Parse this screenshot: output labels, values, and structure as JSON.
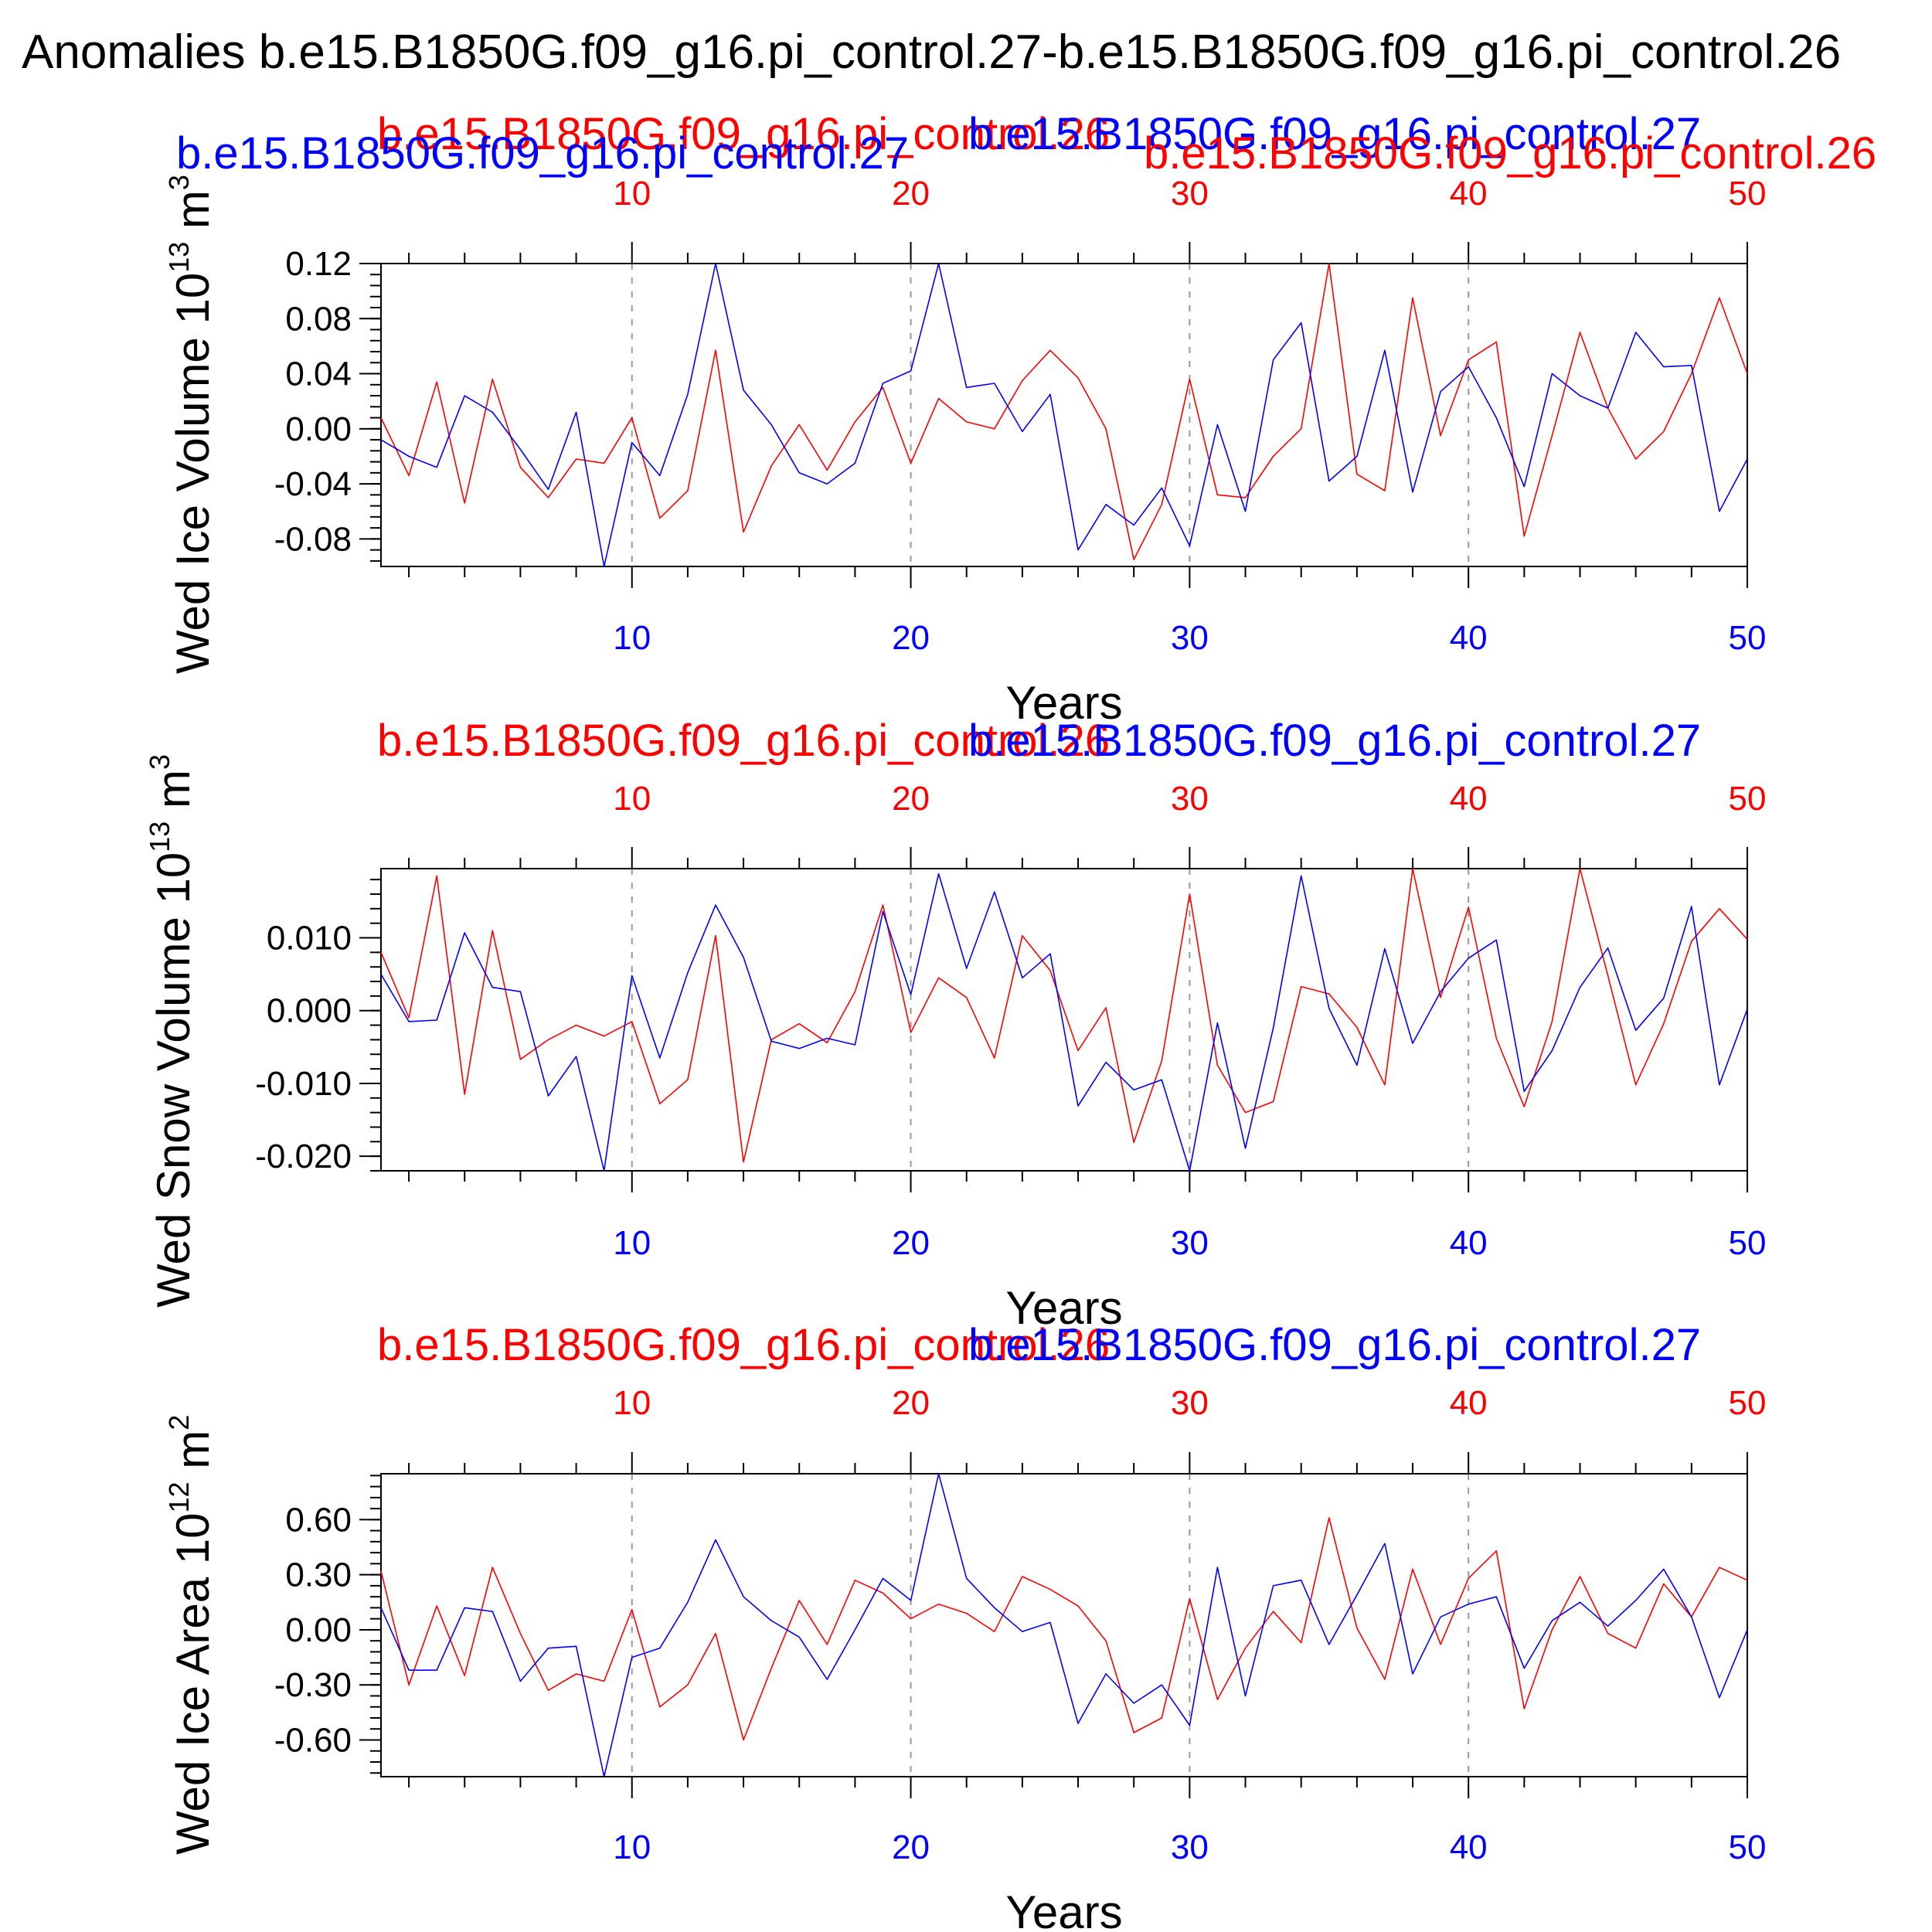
{
  "title": "Anomalies b.e15.B1850G.f09_g16.pi_control.27-b.e15.B1850G.f09_g16.pi_control.26",
  "colors": {
    "run26": "#ff0000",
    "run27": "#0000ff",
    "axis": "#000000",
    "grid": "#999999"
  },
  "panel1_extra_label": "b.e15.B1850G.f09_g16.pi_control.27",
  "panel1_extra_label_red": "b.e15.B1850G.f09_g16.pi_control.26",
  "chart_data": [
    {
      "type": "line",
      "ylabel": "Wed Ice Volume 10",
      "ylabel_exp": "13",
      "ylabel_unit": " m",
      "ylabel_unit_exp": "3",
      "xlabel": "Years",
      "top_ticks": [
        "10",
        "20",
        "30",
        "40",
        "50"
      ],
      "bottom_ticks": [
        "10",
        "20",
        "30",
        "40",
        "50"
      ],
      "xlim": [
        1,
        50
      ],
      "ylim": [
        -0.1,
        0.12
      ],
      "yticks": [
        0.12,
        0.08,
        0.04,
        0.0,
        -0.04,
        -0.08
      ],
      "ytick_labels": [
        "0.12",
        "0.08",
        "0.04",
        "0.00",
        "-0.04",
        "-0.08"
      ],
      "grid_x": [
        10,
        20,
        30,
        40
      ],
      "series": [
        {
          "name": "b.e15.B1850G.f09_g16.pi_control.26",
          "color": "red",
          "values": [
            0.008,
            -0.034,
            0.034,
            -0.054,
            0.036,
            -0.028,
            -0.05,
            -0.022,
            -0.025,
            0.008,
            -0.065,
            -0.045,
            0.057,
            -0.075,
            -0.027,
            0.003,
            -0.03,
            0.005,
            0.03,
            -0.025,
            0.022,
            0.005,
            0.0,
            0.035,
            0.057,
            0.037,
            0.0,
            -0.095,
            -0.055,
            0.036,
            -0.048,
            -0.05,
            -0.02,
            0.0,
            0.12,
            -0.033,
            -0.045,
            0.095,
            -0.005,
            0.05,
            0.063,
            -0.078,
            -0.005,
            0.07,
            0.015,
            -0.022,
            -0.002,
            0.04,
            0.095,
            0.04
          ]
        },
        {
          "name": "b.e15.B1850G.f09_g16.pi_control.27",
          "color": "blue",
          "values": [
            -0.008,
            -0.02,
            -0.028,
            0.024,
            0.012,
            -0.015,
            -0.044,
            0.012,
            -0.1,
            -0.01,
            -0.034,
            0.025,
            0.12,
            0.028,
            0.003,
            -0.032,
            -0.04,
            -0.025,
            0.033,
            0.042,
            0.12,
            0.03,
            0.033,
            -0.002,
            0.025,
            -0.088,
            -0.055,
            -0.07,
            -0.043,
            -0.085,
            0.003,
            -0.06,
            0.05,
            0.077,
            -0.038,
            -0.02,
            0.057,
            -0.046,
            0.027,
            0.045,
            0.008,
            -0.042,
            0.04,
            0.024,
            0.015,
            0.07,
            0.045,
            0.046,
            -0.06,
            -0.022
          ]
        }
      ]
    },
    {
      "type": "line",
      "ylabel": "Wed Snow Volume 10",
      "ylabel_exp": "13",
      "ylabel_unit": " m",
      "ylabel_unit_exp": "3",
      "xlabel": "Years",
      "top_ticks": [
        "10",
        "20",
        "30",
        "40",
        "50"
      ],
      "bottom_ticks": [
        "10",
        "20",
        "30",
        "40",
        "50"
      ],
      "xlim": [
        1,
        50
      ],
      "ylim": [
        -0.022,
        0.0195
      ],
      "yticks": [
        0.01,
        0.0,
        -0.01,
        -0.02
      ],
      "ytick_labels": [
        "0.010",
        "0.000",
        "-0.010",
        "-0.020"
      ],
      "grid_x": [
        10,
        20,
        30,
        40
      ],
      "series": [
        {
          "name": "b.e15.B1850G.f09_g16.pi_control.26",
          "color": "red",
          "values": [
            0.008,
            -0.001,
            0.0185,
            -0.0115,
            0.011,
            -0.0067,
            -0.004,
            -0.002,
            -0.0035,
            -0.0015,
            -0.0128,
            -0.0095,
            0.0103,
            -0.0208,
            -0.004,
            -0.0018,
            -0.0044,
            0.0026,
            0.0145,
            -0.003,
            0.0045,
            0.0018,
            -0.0065,
            0.0103,
            0.0055,
            -0.0055,
            0.0004,
            -0.0181,
            -0.0069,
            0.016,
            -0.0075,
            -0.014,
            -0.0125,
            0.0033,
            0.0023,
            -0.0023,
            -0.0102,
            0.0195,
            0.0018,
            0.0142,
            -0.0038,
            -0.0132,
            -0.0015,
            0.0195,
            0.0048,
            -0.0102,
            -0.0018,
            0.0095,
            0.014,
            0.0098
          ]
        },
        {
          "name": "b.e15.B1850G.f09_g16.pi_control.27",
          "color": "blue",
          "values": [
            0.005,
            -0.0015,
            -0.0013,
            0.0107,
            0.0032,
            0.0026,
            -0.0117,
            -0.0063,
            -0.022,
            0.0048,
            -0.0065,
            0.0052,
            0.0145,
            0.0073,
            -0.0042,
            -0.0052,
            -0.0038,
            -0.0047,
            0.0136,
            0.0022,
            0.0188,
            0.0058,
            0.0163,
            0.0045,
            0.0078,
            -0.0131,
            -0.0071,
            -0.0109,
            -0.0095,
            -0.022,
            -0.0017,
            -0.0189,
            -0.0024,
            0.0185,
            0.0003,
            -0.0075,
            0.0085,
            -0.0045,
            0.0026,
            0.0072,
            0.0097,
            -0.0111,
            -0.0055,
            0.0032,
            0.0086,
            -0.0027,
            0.0017,
            0.0143,
            -0.0102,
            0.0002
          ]
        }
      ]
    },
    {
      "type": "line",
      "ylabel": "Wed Ice Area 10",
      "ylabel_exp": "12",
      "ylabel_unit": " m",
      "ylabel_unit_exp": "2",
      "xlabel": "Years",
      "top_ticks": [
        "10",
        "20",
        "30",
        "40",
        "50"
      ],
      "bottom_ticks": [
        "10",
        "20",
        "30",
        "40",
        "50"
      ],
      "xlim": [
        1,
        50
      ],
      "ylim": [
        -0.8,
        0.85
      ],
      "yticks": [
        0.6,
        0.3,
        0.0,
        -0.3,
        -0.6
      ],
      "ytick_labels": [
        "0.60",
        "0.30",
        "0.00",
        "-0.30",
        "-0.60"
      ],
      "grid_x": [
        10,
        20,
        30,
        40
      ],
      "series": [
        {
          "name": "b.e15.B1850G.f09_g16.pi_control.26",
          "color": "red",
          "values": [
            0.32,
            -0.3,
            0.13,
            -0.25,
            0.34,
            -0.02,
            -0.33,
            -0.24,
            -0.28,
            0.11,
            -0.42,
            -0.3,
            -0.02,
            -0.6,
            -0.21,
            0.16,
            -0.08,
            0.27,
            0.2,
            0.06,
            0.14,
            0.09,
            -0.01,
            0.29,
            0.22,
            0.13,
            -0.06,
            -0.56,
            -0.48,
            0.17,
            -0.38,
            -0.1,
            0.1,
            -0.07,
            0.61,
            0.01,
            -0.27,
            0.33,
            -0.08,
            0.28,
            0.43,
            -0.43,
            0.0,
            0.29,
            -0.02,
            -0.1,
            0.25,
            0.07,
            0.34,
            0.27
          ]
        },
        {
          "name": "b.e15.B1850G.f09_g16.pi_control.27",
          "color": "blue",
          "values": [
            0.12,
            -0.22,
            -0.22,
            0.12,
            0.1,
            -0.28,
            -0.1,
            -0.09,
            -0.8,
            -0.15,
            -0.1,
            0.15,
            0.49,
            0.18,
            0.05,
            -0.04,
            -0.27,
            0.0,
            0.28,
            0.16,
            0.85,
            0.28,
            0.12,
            -0.01,
            0.04,
            -0.51,
            -0.24,
            -0.4,
            -0.3,
            -0.52,
            0.34,
            -0.36,
            0.24,
            0.27,
            -0.08,
            0.19,
            0.47,
            -0.24,
            0.07,
            0.14,
            0.18,
            -0.21,
            0.05,
            0.15,
            0.02,
            0.16,
            0.33,
            0.07,
            -0.37,
            0.0
          ]
        }
      ]
    }
  ]
}
